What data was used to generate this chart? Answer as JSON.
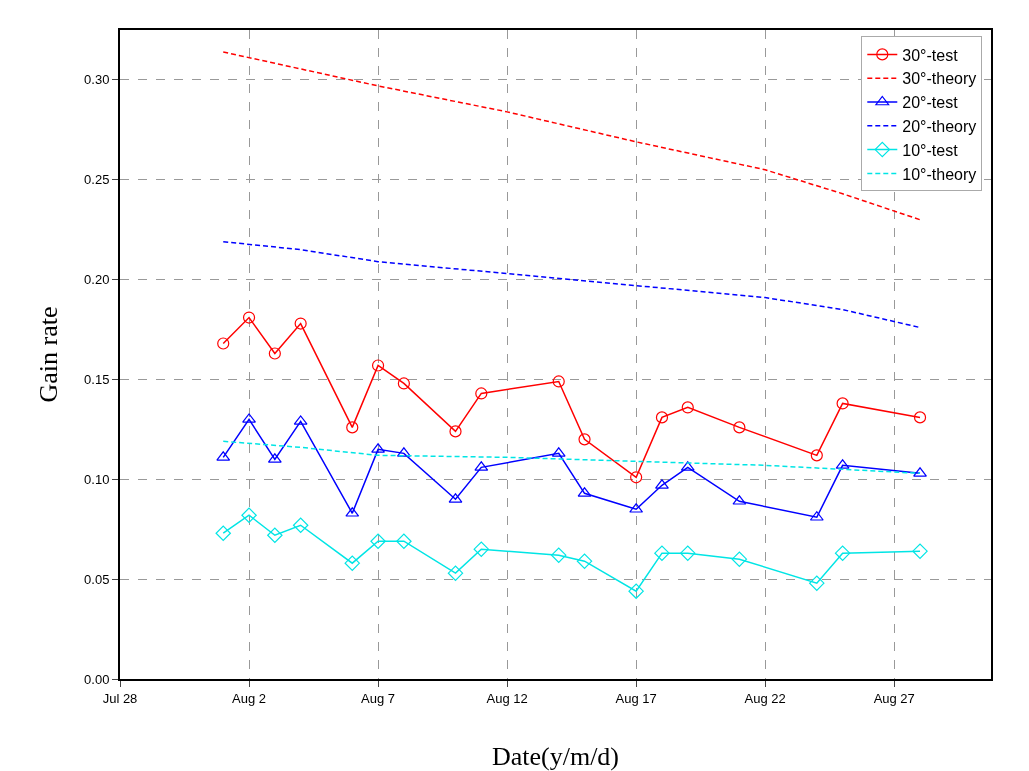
{
  "chart_data": {
    "type": "line",
    "xlabel": "Date(y/m/d)",
    "ylabel": "Gain rate",
    "xlim": [
      "--07-28",
      "--08-30T18:00"
    ],
    "xticks": [
      {
        "value": "--07-28",
        "label": "Jul 28"
      },
      {
        "value": "--08-02",
        "label": "Aug 2"
      },
      {
        "value": "--08-07",
        "label": "Aug 7"
      },
      {
        "value": "--08-12",
        "label": "Aug 12"
      },
      {
        "value": "--08-17",
        "label": "Aug 17"
      },
      {
        "value": "--08-22",
        "label": "Aug 22"
      },
      {
        "value": "--08-27",
        "label": "Aug 27"
      }
    ],
    "ylim": [
      0,
      0.325
    ],
    "yticks": [
      {
        "value": 0,
        "label": "0.00"
      },
      {
        "value": 0.05,
        "label": "0.05"
      },
      {
        "value": 0.1,
        "label": "0.10"
      },
      {
        "value": 0.15,
        "label": "0.15"
      },
      {
        "value": 0.2,
        "label": "0.20"
      },
      {
        "value": 0.25,
        "label": "0.25"
      },
      {
        "value": 0.3,
        "label": "0.30"
      }
    ],
    "grid": true,
    "legend": "top right",
    "x": [
      "--08-01",
      "--08-02",
      "--08-03",
      "--08-04",
      "--08-06",
      "--08-07",
      "--08-08",
      "--08-10",
      "--08-11",
      "--08-14",
      "--08-15",
      "--08-17",
      "--08-18",
      "--08-19",
      "--08-21",
      "--08-24",
      "--08-25",
      "--08-28"
    ],
    "series": [
      {
        "name": "30°-test",
        "color": "#ff0000",
        "marker": "circle",
        "line_style": "solid",
        "values": [
          0.168,
          0.181,
          0.163,
          0.178,
          0.126,
          0.157,
          0.148,
          0.124,
          0.143,
          0.149,
          0.12,
          0.101,
          0.131,
          0.136,
          0.126,
          0.112,
          0.138,
          0.131
        ]
      },
      {
        "name": "30°-theory",
        "color": "#ff0000",
        "marker": "none",
        "line_style": "dashed",
        "x": [
          "--08-01",
          "--08-07",
          "--08-12",
          "--08-17",
          "--08-22",
          "--08-25",
          "--08-28"
        ],
        "values": [
          0.314,
          0.297,
          0.284,
          0.269,
          0.255,
          0.243,
          0.23
        ]
      },
      {
        "name": "20°-test",
        "color": "#0000ff",
        "marker": "triangle",
        "line_style": "solid",
        "values": [
          0.111,
          0.13,
          0.11,
          0.129,
          0.083,
          0.115,
          0.113,
          0.09,
          0.106,
          0.113,
          0.093,
          0.085,
          0.097,
          0.106,
          0.089,
          0.081,
          0.107,
          0.103
        ]
      },
      {
        "name": "20°-theory",
        "color": "#0000ff",
        "marker": "none",
        "line_style": "dashed",
        "x": [
          "--08-01",
          "--08-04",
          "--08-07",
          "--08-12",
          "--08-17",
          "--08-22",
          "--08-25",
          "--08-28"
        ],
        "values": [
          0.219,
          0.215,
          0.209,
          0.203,
          0.197,
          0.191,
          0.185,
          0.176
        ]
      },
      {
        "name": "10°-test",
        "color": "#00e5e5",
        "marker": "diamond",
        "line_style": "solid",
        "values": [
          0.073,
          0.082,
          0.072,
          0.077,
          0.058,
          0.069,
          0.069,
          0.053,
          0.065,
          0.062,
          0.059,
          0.044,
          0.063,
          0.063,
          0.06,
          0.048,
          0.063,
          0.064
        ]
      },
      {
        "name": "10°-theory",
        "color": "#00e5e5",
        "marker": "none",
        "line_style": "dashed",
        "x": [
          "--08-01",
          "--08-04",
          "--08-07",
          "--08-12",
          "--08-17",
          "--08-22",
          "--08-28"
        ],
        "values": [
          0.119,
          0.116,
          0.112,
          0.111,
          0.109,
          0.107,
          0.103
        ]
      }
    ]
  }
}
